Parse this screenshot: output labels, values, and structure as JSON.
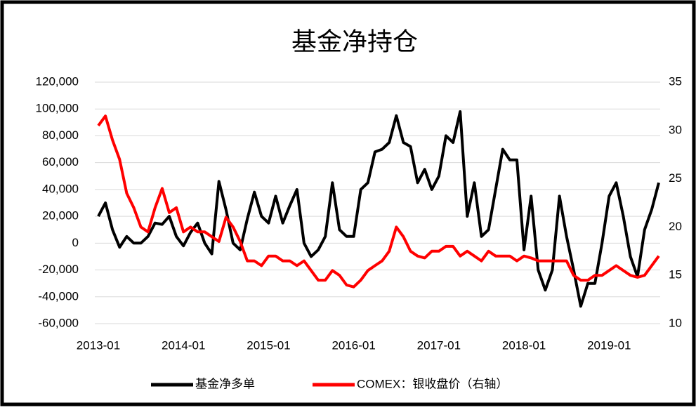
{
  "chart_data": {
    "type": "line",
    "title": "基金净持仓",
    "x": [
      "2013-01",
      "2013-02",
      "2013-03",
      "2013-04",
      "2013-05",
      "2013-06",
      "2013-07",
      "2013-08",
      "2013-09",
      "2013-10",
      "2013-11",
      "2013-12",
      "2014-01",
      "2014-02",
      "2014-03",
      "2014-04",
      "2014-05",
      "2014-06",
      "2014-07",
      "2014-08",
      "2014-09",
      "2014-10",
      "2014-11",
      "2014-12",
      "2015-01",
      "2015-02",
      "2015-03",
      "2015-04",
      "2015-05",
      "2015-06",
      "2015-07",
      "2015-08",
      "2015-09",
      "2015-10",
      "2015-11",
      "2015-12",
      "2016-01",
      "2016-02",
      "2016-03",
      "2016-04",
      "2016-05",
      "2016-06",
      "2016-07",
      "2016-08",
      "2016-09",
      "2016-10",
      "2016-11",
      "2016-12",
      "2017-01",
      "2017-02",
      "2017-03",
      "2017-04",
      "2017-05",
      "2017-06",
      "2017-07",
      "2017-08",
      "2017-09",
      "2017-10",
      "2017-11",
      "2017-12",
      "2018-01",
      "2018-02",
      "2018-03",
      "2018-04",
      "2018-05",
      "2018-06",
      "2018-07",
      "2018-08",
      "2018-09",
      "2018-10",
      "2018-11",
      "2018-12",
      "2019-01",
      "2019-02",
      "2019-03",
      "2019-04",
      "2019-05",
      "2019-06",
      "2019-07",
      "2019-08"
    ],
    "series": [
      {
        "name": "基金净多单",
        "color": "#000000",
        "axis": "y",
        "values": [
          20000,
          30000,
          10000,
          -3000,
          5000,
          0,
          0,
          5000,
          15000,
          14000,
          20000,
          5000,
          -2000,
          8000,
          15000,
          0,
          -8000,
          46000,
          25000,
          0,
          -5000,
          18000,
          38000,
          20000,
          15000,
          35000,
          15000,
          28000,
          40000,
          0,
          -10000,
          -5000,
          5000,
          45000,
          10000,
          5000,
          5000,
          40000,
          45000,
          68000,
          70000,
          75000,
          95000,
          75000,
          72000,
          45000,
          55000,
          40000,
          50000,
          80000,
          75000,
          98000,
          20000,
          45000,
          5000,
          10000,
          40000,
          70000,
          62000,
          62000,
          -5000,
          35000,
          -20000,
          -35000,
          -20000,
          35000,
          5000,
          -20000,
          -47000,
          -30000,
          -30000,
          0,
          35000,
          45000,
          20000,
          -10000,
          -25000,
          10000,
          25000,
          45000
        ]
      },
      {
        "name": "COMEX：银收盘价（右轴）",
        "color": "#ff0000",
        "axis": "y2",
        "values": [
          30.5,
          31.5,
          29,
          27,
          23.5,
          22,
          20,
          19.5,
          22,
          24,
          21.5,
          22,
          19.5,
          20,
          19.5,
          19.5,
          19,
          18.5,
          21,
          20,
          18.5,
          16.5,
          16.5,
          16,
          17,
          17,
          16.5,
          16.5,
          16,
          16.5,
          15.5,
          14.5,
          14.5,
          15.5,
          15,
          14,
          13.8,
          14.5,
          15.5,
          16,
          16.5,
          17.5,
          20,
          19,
          17.5,
          17,
          16.8,
          17.5,
          17.5,
          18,
          18,
          17,
          17.5,
          17,
          16.5,
          17.5,
          17,
          17,
          17,
          16.5,
          17,
          16.8,
          16.5,
          16.5,
          16.5,
          16.5,
          16.5,
          15,
          14.5,
          14.5,
          15,
          15,
          15.5,
          16,
          15.5,
          15,
          14.8,
          15,
          16,
          17
        ]
      }
    ],
    "xlim": [
      "2013-01",
      "2019-08"
    ],
    "xticks": [
      "2013-01",
      "2014-01",
      "2015-01",
      "2016-01",
      "2017-01",
      "2018-01",
      "2019-01"
    ],
    "ylim": [
      -60000,
      120000
    ],
    "yticks": [
      {
        "value": -60000,
        "label": "-60,000"
      },
      {
        "value": -40000,
        "label": "-40,000"
      },
      {
        "value": -20000,
        "label": "-20,000"
      },
      0,
      {
        "value": 20000,
        "label": "20,000"
      },
      {
        "value": 40000,
        "label": "40,000"
      },
      {
        "value": 60000,
        "label": "60,000"
      },
      {
        "value": 80000,
        "label": "80,000"
      },
      {
        "value": 100000,
        "label": "100,000"
      },
      {
        "value": 120000,
        "label": "120,000"
      }
    ],
    "y2lim": [
      10,
      35
    ],
    "y2ticks": [
      10,
      15,
      20,
      25,
      30,
      35
    ],
    "grid": true,
    "legend": "bottom"
  }
}
